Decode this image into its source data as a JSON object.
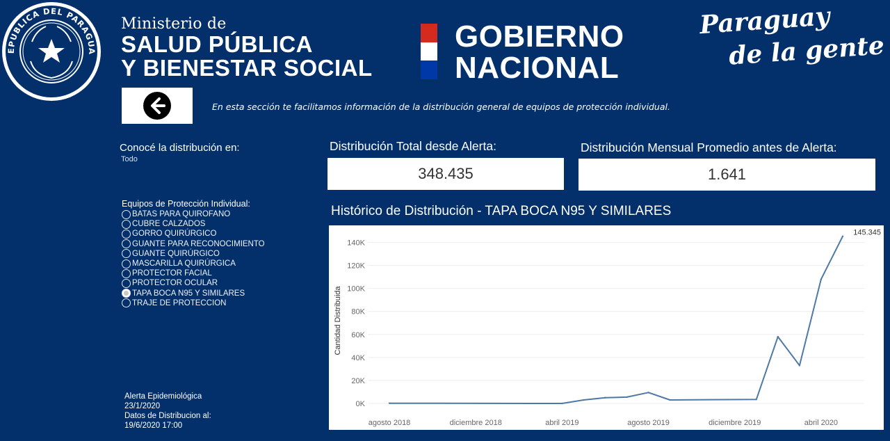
{
  "header": {
    "seal_text": "REPUBLICA DEL PARAGUAY",
    "ministry_line1": "Ministerio de",
    "ministry_line2": "SALUD PÚBLICA",
    "ministry_line3": "Y BIENESTAR SOCIAL",
    "gobierno_line1": "GOBIERNO",
    "gobierno_line2": "NACIONAL",
    "slogan_line1": "Paraguay",
    "slogan_line2": "de la gente",
    "flag_colors": [
      "#d52b1e",
      "#ffffff",
      "#0038a8"
    ]
  },
  "intro_text": "En esta sección te facilitamos información de la distribución general de equipos de protección individual.",
  "filter": {
    "label": "Conocé la distribución en:",
    "value": "Todo"
  },
  "epi": {
    "title": "Equipos de Protección Individual:",
    "options": [
      {
        "label": "BATAS PARA QUIROFANO",
        "selected": false
      },
      {
        "label": "CUBRE CALZADOS",
        "selected": false
      },
      {
        "label": "GORRO QUIRÚRGICO",
        "selected": false
      },
      {
        "label": "GUANTE PARA RECONOCIMIENTO",
        "selected": false
      },
      {
        "label": "GUANTE QUIRÚRGICO",
        "selected": false
      },
      {
        "label": "MASCARILLA QUIRÚRGICA",
        "selected": false
      },
      {
        "label": "PROTECTOR FACIAL",
        "selected": false
      },
      {
        "label": "PROTECTOR OCULAR",
        "selected": false
      },
      {
        "label": "TAPA BOCA N95 Y SIMILARES",
        "selected": true
      },
      {
        "label": "TRAJE DE PROTECCION",
        "selected": false
      }
    ]
  },
  "alert": {
    "line1": "Alerta Epidemiológica",
    "line2": "23/1/2020",
    "line3": "Datos de Distribucion al:",
    "line4": "19/6/2020  17:00"
  },
  "kpi": {
    "total_label": "Distribución Total desde Alerta:",
    "total_value": "348.435",
    "monthly_label": "Distribución Mensual Promedio antes de Alerta:",
    "monthly_value": "1.641"
  },
  "chart_title": "Histórico de Distribución - TAPA BOCA N95 Y SIMILARES",
  "chart_data": {
    "type": "line",
    "ylabel": "Cantidad Distribuida",
    "xlabel": "",
    "ylim": [
      0,
      150000
    ],
    "yticks": [
      0,
      20000,
      40000,
      60000,
      80000,
      100000,
      120000,
      140000
    ],
    "ytick_labels": [
      "0K",
      "20K",
      "40K",
      "60K",
      "80K",
      "100K",
      "120K",
      "140K"
    ],
    "xticks": [
      "2018-08",
      "2018-12",
      "2019-04",
      "2019-08",
      "2019-12",
      "2020-04"
    ],
    "xtick_labels": [
      "agosto 2018",
      "diciembre 2018",
      "abril 2019",
      "agosto 2019",
      "diciembre 2019",
      "abril 2020"
    ],
    "x": [
      "2018-08",
      "2019-04",
      "2019-05",
      "2019-06",
      "2019-07",
      "2019-08",
      "2019-09",
      "2020-01",
      "2020-02",
      "2020-03",
      "2020-04",
      "2020-05"
    ],
    "values": [
      200,
      0,
      3000,
      5000,
      5500,
      9500,
      3000,
      3500,
      58000,
      33000,
      108000,
      145345
    ],
    "end_label": "145.345",
    "line_color": "#4e79a7",
    "grid": true
  },
  "colors": {
    "background": "#03306b",
    "panel": "#ffffff",
    "line": "#4e79a7"
  }
}
